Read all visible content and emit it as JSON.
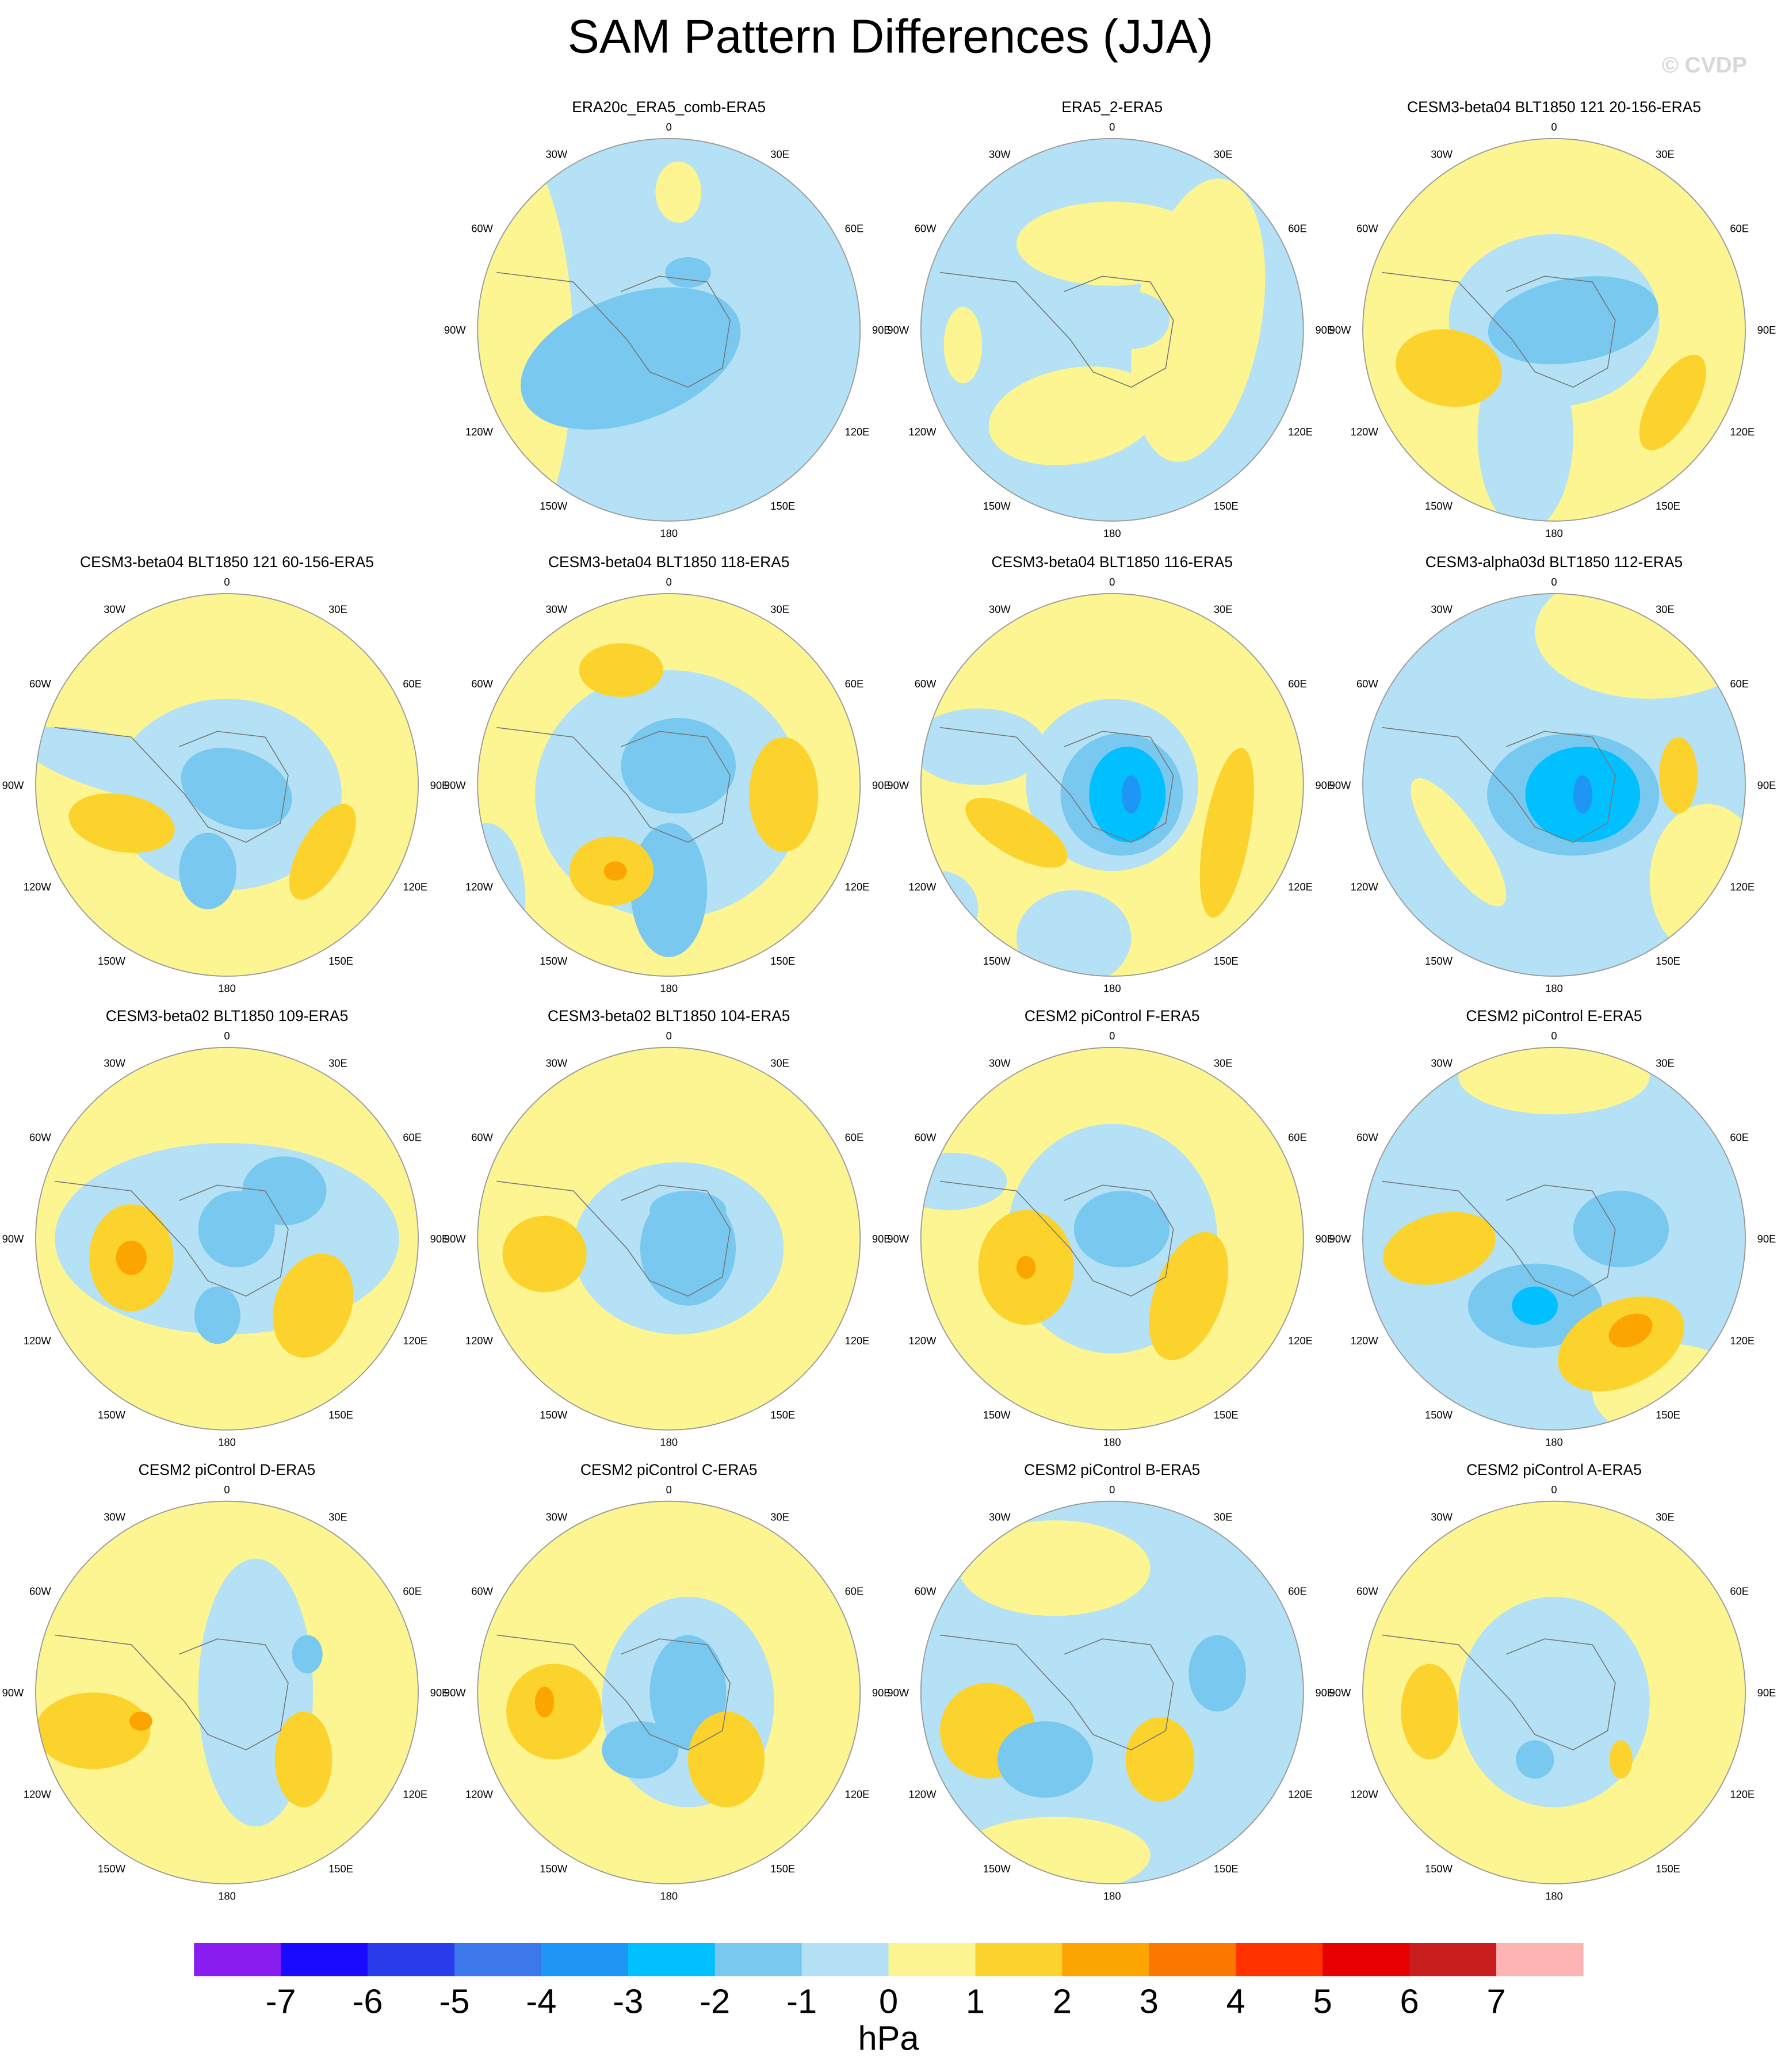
{
  "title": "SAM Pattern Differences (JJA)",
  "watermark": "© CVDP",
  "panels": [
    {
      "title": "ERA20c_ERA5_comb-ERA5"
    },
    {
      "title": "ERA5_2-ERA5"
    },
    {
      "title": "CESM3-beta04 BLT1850 121 20-156-ERA5"
    },
    {
      "title": "CESM3-beta04 BLT1850 121 60-156-ERA5"
    },
    {
      "title": "CESM3-beta04 BLT1850 118-ERA5"
    },
    {
      "title": "CESM3-beta04 BLT1850 116-ERA5"
    },
    {
      "title": "CESM3-alpha03d BLT1850 112-ERA5"
    },
    {
      "title": "CESM3-beta02 BLT1850 109-ERA5"
    },
    {
      "title": "CESM3-beta02 BLT1850 104-ERA5"
    },
    {
      "title": "CESM2 piControl F-ERA5"
    },
    {
      "title": "CESM2 piControl E-ERA5"
    },
    {
      "title": "CESM2 piControl D-ERA5"
    },
    {
      "title": "CESM2 piControl C-ERA5"
    },
    {
      "title": "CESM2 piControl B-ERA5"
    },
    {
      "title": "CESM2 piControl A-ERA5"
    }
  ],
  "lon_labels": [
    "0",
    "30E",
    "60E",
    "90E",
    "120E",
    "150E",
    "180",
    "150W",
    "120W",
    "90W",
    "60W",
    "30W"
  ],
  "colorbar": {
    "colors": [
      "#8a1ef0",
      "#1a0aff",
      "#2a3ceb",
      "#3c78eb",
      "#1e96f5",
      "#00c0ff",
      "#78c8f0",
      "#b4e1f5",
      "#fcf591",
      "#fcd22c",
      "#fca500",
      "#fa7800",
      "#ff3200",
      "#e60000",
      "#c81e1e",
      "#ffb4b4"
    ],
    "ticks": [
      -7,
      -6,
      -5,
      -4,
      -3,
      -2,
      -1,
      0,
      1,
      2,
      3,
      4,
      5,
      6,
      7
    ],
    "units": "hPa"
  }
}
